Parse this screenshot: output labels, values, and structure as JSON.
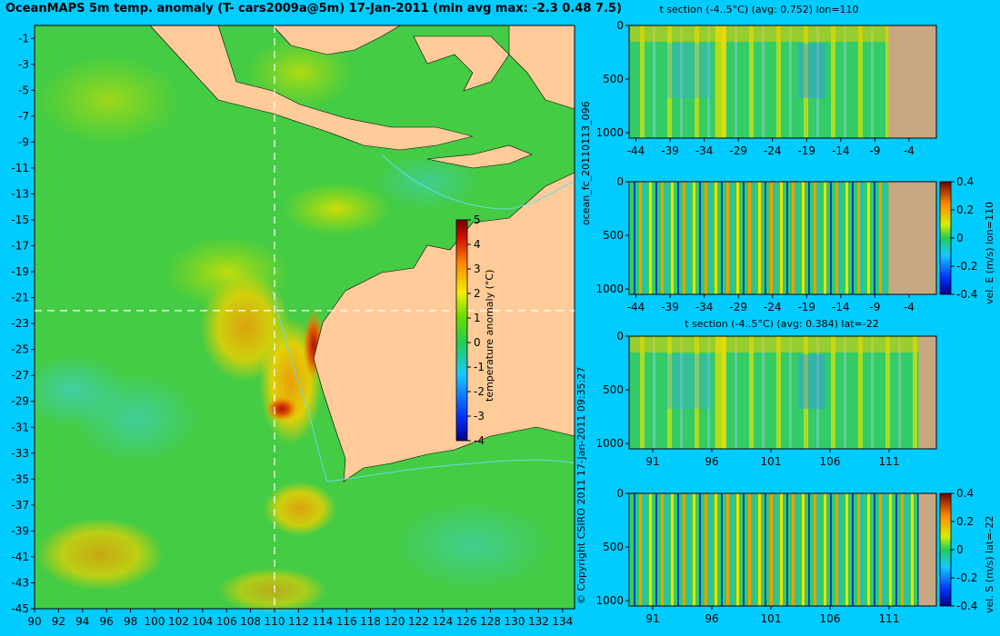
{
  "map": {
    "title": "OceanMAPS 5m temp. anomaly (T- cars2009a@5m) 17-Jan-2011 (min avg max: -2.3 0.48 7.5)",
    "colorbar_label": "temperature anomaly (°C)",
    "colorbar_ticks": [
      "5",
      "4",
      "3",
      "2",
      "1",
      "0",
      "-1",
      "-2",
      "-3",
      "-4"
    ],
    "copyright": "© Copyright CSIRO 2011   17-Jan-2011 09:35:27"
  },
  "side_label": "ocean_fc_20110113_096",
  "colors": {
    "background": "#00ccff",
    "land": "#ffcc99",
    "section_land": "#c8a882",
    "bathy": "#5fe0e6",
    "crosshair": "#ffffff"
  },
  "chart_data": [
    {
      "type": "heatmap",
      "name": "map",
      "xlabel": "",
      "ylabel": "",
      "x_ticks": [
        90,
        92,
        94,
        96,
        98,
        100,
        102,
        104,
        106,
        108,
        110,
        112,
        114,
        116,
        118,
        120,
        122,
        124,
        126,
        128,
        130,
        132,
        134
      ],
      "y_ticks": [
        -1,
        -3,
        -5,
        -7,
        -9,
        -11,
        -13,
        -15,
        -17,
        -19,
        -21,
        -23,
        -25,
        -27,
        -29,
        -31,
        -33,
        -35,
        -37,
        -39,
        -41,
        -43,
        -45
      ],
      "xlim": [
        90,
        135
      ],
      "ylim": [
        -45,
        0
      ],
      "crosshair_lon": 110,
      "crosshair_lat": -22,
      "clim": [
        -4,
        5
      ],
      "colorbar_label": "temperature anomaly (°C)"
    },
    {
      "type": "heatmap",
      "name": "section1",
      "title": "t section (-4..5°C) (avg: 0.752) lon=110",
      "x_ticks": [
        -44,
        -39,
        -34,
        -29,
        -24,
        -19,
        -14,
        -9,
        -4
      ],
      "y_ticks": [
        0,
        500,
        1000
      ],
      "xlim": [
        -45,
        0
      ],
      "ylim": [
        1050,
        0
      ],
      "clim": [
        -4,
        5
      ]
    },
    {
      "type": "heatmap",
      "name": "section2",
      "title": "",
      "x_ticks": [
        -44,
        -39,
        -34,
        -29,
        -24,
        -19,
        -14,
        -9,
        -4
      ],
      "y_ticks": [
        0,
        500,
        1000
      ],
      "xlim": [
        -45,
        0
      ],
      "ylim": [
        1050,
        0
      ],
      "clim": [
        -0.4,
        0.4
      ],
      "colorbar_label": "vel. E (m/s) lon=110",
      "colorbar_ticks": [
        "0.4",
        "0.2",
        "0",
        "-0.2",
        "-0.4"
      ]
    },
    {
      "type": "heatmap",
      "name": "section3",
      "title": "t section (-4..5°C) (avg: 0.384) lat=-22",
      "x_ticks": [
        91,
        96,
        101,
        106,
        111
      ],
      "y_ticks": [
        0,
        500,
        1000
      ],
      "xlim": [
        89,
        115
      ],
      "ylim": [
        1050,
        0
      ],
      "clim": [
        -4,
        5
      ]
    },
    {
      "type": "heatmap",
      "name": "section4",
      "title": "",
      "x_ticks": [
        91,
        96,
        101,
        106,
        111
      ],
      "y_ticks": [
        0,
        500,
        1000
      ],
      "xlim": [
        89,
        115
      ],
      "ylim": [
        1050,
        0
      ],
      "clim": [
        -0.4,
        0.4
      ],
      "colorbar_label": "vel. S (m/s) lat=-22",
      "colorbar_ticks": [
        "0.4",
        "0.2",
        "0",
        "-0.2",
        "-0.4"
      ]
    }
  ]
}
